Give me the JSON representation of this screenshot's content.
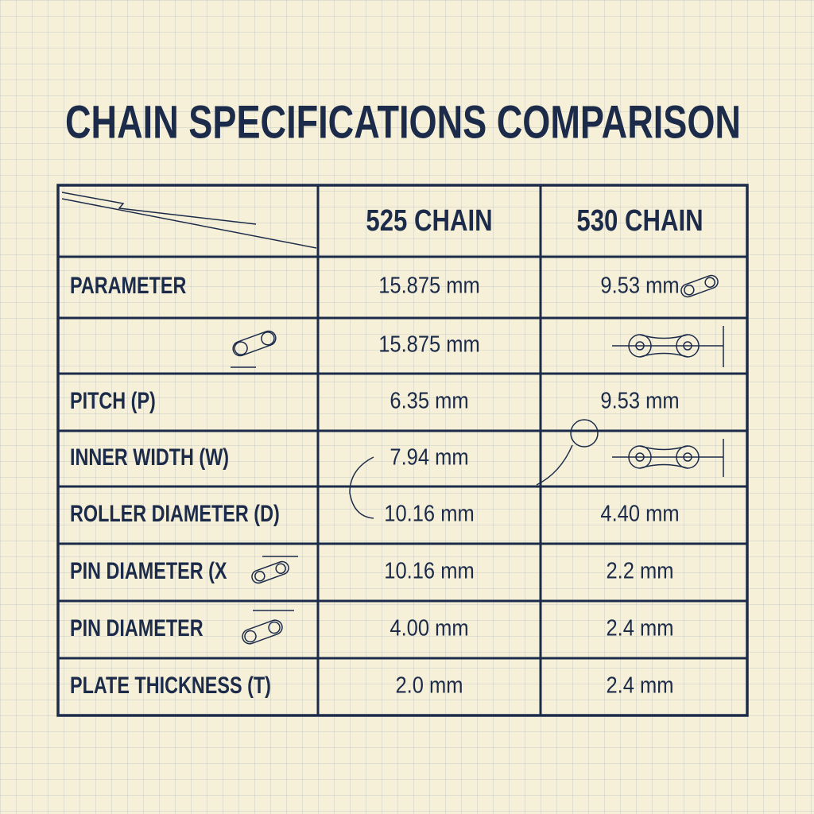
{
  "title": "CHAIN SPECIFICATIONS COMPARISON",
  "table": {
    "header": [
      "525 CHAIN",
      "530 CHAIN"
    ],
    "rows": [
      [
        "PARAMETER",
        "15.875 mm",
        "9.53 mm"
      ],
      [
        null,
        "15.875 mm",
        null
      ],
      [
        "PITCH (P)",
        "6.35 mm",
        "9.53 mm"
      ],
      [
        "INNER WIDTH (W)",
        "7.94 mm",
        null
      ],
      [
        "ROLLER DIAMETER (D)",
        "10.16 mm",
        "4.40 mm"
      ],
      [
        "PIN DIAMETER (X",
        "10.16 mm",
        "2.2 mm"
      ],
      [
        "PIN DIAMETER",
        "4.00 mm",
        "2.4 mm"
      ],
      [
        "PLATE THICKNESS (T)",
        "2.0 mm",
        "2.4 mm"
      ]
    ]
  }
}
